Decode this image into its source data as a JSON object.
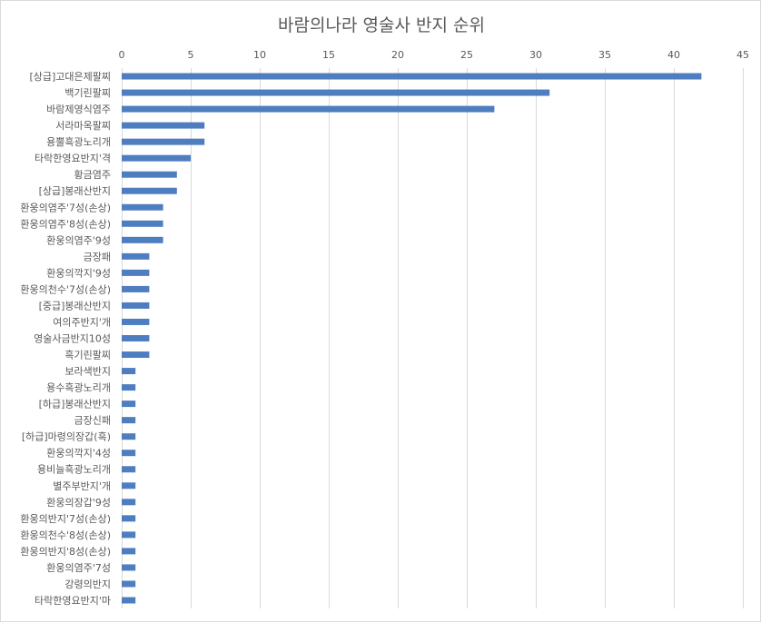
{
  "chart_data": {
    "type": "bar",
    "orientation": "horizontal",
    "title": "바람의나라 영술사 반지 순위",
    "xlabel": "",
    "ylabel": "",
    "xlim": [
      0,
      45
    ],
    "x_ticks": [
      0,
      5,
      10,
      15,
      20,
      25,
      30,
      35,
      40,
      45
    ],
    "x_axis_position": "top",
    "grid": true,
    "legend": "none",
    "bar_color": "#4f7ec0",
    "categories": [
      "[상급]고대은제팔찌",
      "백기린팔찌",
      "바람제영식염주",
      "서라마옥팔찌",
      "용뿔흑광노리개",
      "타락한영요반지'격",
      "황금염주",
      "[상급]봉래산반지",
      "환웅의염주'7성(손상)",
      "환웅의염주'8성(손상)",
      "환웅의염주'9성",
      "금장패",
      "환웅의깍지'9성",
      "환웅의천수'7성(손상)",
      "[중급]봉래산반지",
      "여의주반지'개",
      "영술사금반지10성",
      "흑기린팔찌",
      "보라색반지",
      "용수흑광노리개",
      "[하급]봉래산반지",
      "금장신패",
      "[하급]마령의장갑(흑)",
      "환웅의깍지'4성",
      "용비늘흑광노리개",
      "별주부반지'개",
      "환웅의장갑'9성",
      "환웅의반지'7성(손상)",
      "환웅의천수'8성(손상)",
      "환웅의반지'8성(손상)",
      "환웅의염주'7성",
      "강령의반지",
      "타락한영요반지'마"
    ],
    "values": [
      42,
      31,
      27,
      6,
      6,
      5,
      4,
      4,
      3,
      3,
      3,
      2,
      2,
      2,
      2,
      2,
      2,
      2,
      1,
      1,
      1,
      1,
      1,
      1,
      1,
      1,
      1,
      1,
      1,
      1,
      1,
      1,
      1
    ]
  }
}
